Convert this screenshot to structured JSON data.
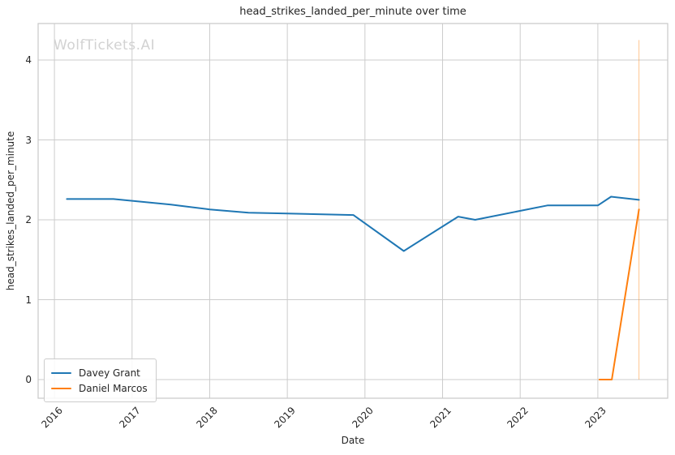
{
  "title": "head_strikes_landed_per_minute over time",
  "watermark": "WolfTickets.AI",
  "axes": {
    "x_label": "Date",
    "y_label": "head_strikes_landed_per_minute",
    "x_ticks": [
      {
        "value": 2016,
        "label": "2016"
      },
      {
        "value": 2017,
        "label": "2017"
      },
      {
        "value": 2018,
        "label": "2018"
      },
      {
        "value": 2019,
        "label": "2019"
      },
      {
        "value": 2020,
        "label": "2020"
      },
      {
        "value": 2021,
        "label": "2021"
      },
      {
        "value": 2022,
        "label": "2022"
      },
      {
        "value": 2023,
        "label": "2023"
      }
    ],
    "y_ticks": [
      {
        "value": 0,
        "label": "0"
      },
      {
        "value": 1,
        "label": "1"
      },
      {
        "value": 2,
        "label": "2"
      },
      {
        "value": 3,
        "label": "3"
      },
      {
        "value": 4,
        "label": "4"
      }
    ]
  },
  "legend": {
    "items": [
      {
        "label": "Davey Grant",
        "color": "#1f77b4"
      },
      {
        "label": "Daniel Marcos",
        "color": "#ff7f0e"
      }
    ]
  },
  "colors": {
    "grid": "#cccccc",
    "spine": "#c8c8c8",
    "text": "#262626",
    "watermark": "#d2d2d2",
    "series_blue": "#1f77b4",
    "series_orange": "#ff7f0e",
    "vline_faint": "rgba(255,127,14,0.45)"
  },
  "chart_data": {
    "type": "line",
    "title": "head_strikes_landed_per_minute over time",
    "xlabel": "Date",
    "ylabel": "head_strikes_landed_per_minute",
    "x_range": [
      2015.79,
      2023.9
    ],
    "y_range": [
      -0.233,
      4.457
    ],
    "grid": true,
    "legend_position": "lower left",
    "series": [
      {
        "name": "Davey Grant",
        "color": "#1f77b4",
        "x": [
          2016.16,
          2016.76,
          2017.5,
          2018.0,
          2018.5,
          2019.0,
          2019.85,
          2020.5,
          2021.2,
          2021.42,
          2022.35,
          2023.0,
          2023.17,
          2023.53
        ],
        "y": [
          2.26,
          2.26,
          2.19,
          2.13,
          2.09,
          2.08,
          2.06,
          1.61,
          2.04,
          2.0,
          2.18,
          2.18,
          2.29,
          2.25
        ]
      },
      {
        "name": "Daniel Marcos",
        "color": "#ff7f0e",
        "x": [
          2023.02,
          2023.18,
          2023.53
        ],
        "y": [
          0.0,
          0.0,
          2.13
        ]
      }
    ],
    "annotations": [
      {
        "type": "vline",
        "x": 2023.53,
        "y0": 0.0,
        "y1": 4.25,
        "color": "rgba(255,127,14,0.45)",
        "width": 1
      }
    ]
  }
}
